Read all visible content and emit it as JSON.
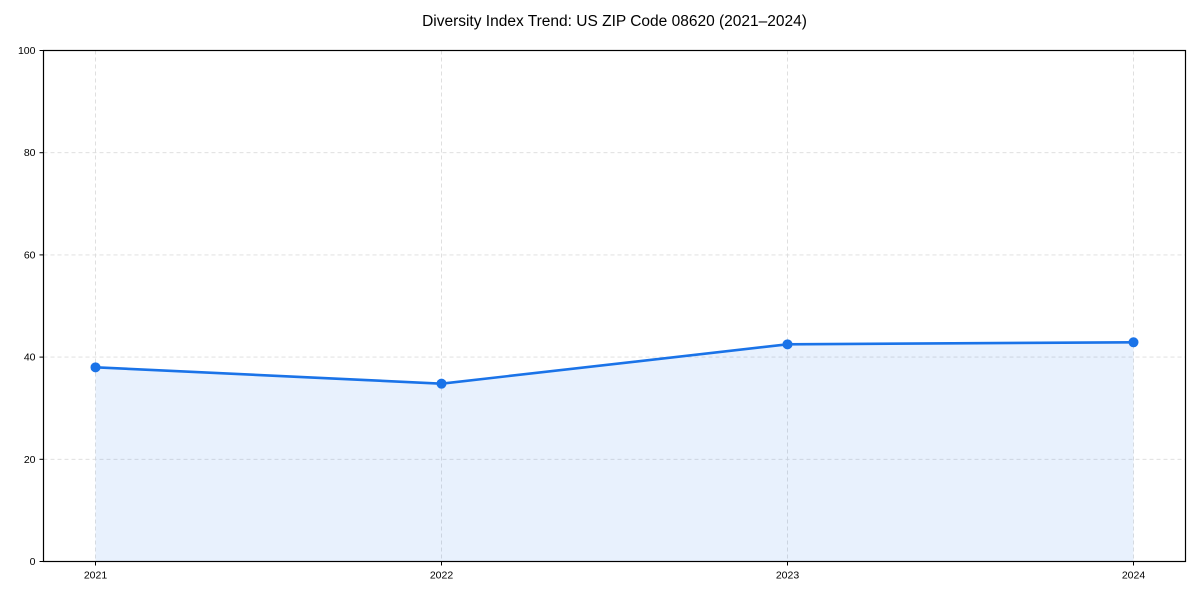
{
  "chart_data": {
    "type": "line",
    "title": "Diversity Index Trend: US ZIP Code 08620 (2021–2024)",
    "categories": [
      "2021",
      "2022",
      "2023",
      "2024"
    ],
    "series": [
      {
        "name": "Diversity Index",
        "values": [
          38.0,
          34.8,
          42.5,
          42.9
        ]
      }
    ],
    "xlabel": "",
    "ylabel": "",
    "ylim": [
      0,
      100
    ],
    "yticks": [
      0,
      20,
      40,
      60,
      80,
      100
    ],
    "grid": true,
    "grid_style": "dashed",
    "legend_position": "none",
    "area_fill": true,
    "marker": "circle",
    "colors": {
      "line": "#1a73e8",
      "marker": "#1a73e8",
      "area_fill": "rgba(26,115,232,0.10)",
      "grid": "#dcdcdc",
      "axis": "#000000",
      "tick_text": "#000000",
      "background": "#ffffff"
    }
  }
}
